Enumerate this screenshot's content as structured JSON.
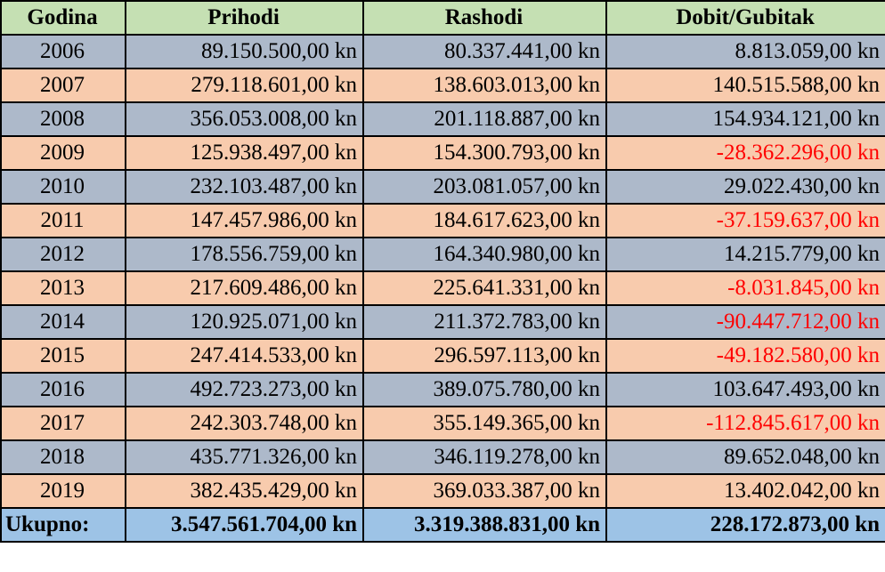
{
  "table": {
    "header": [
      "Godina",
      "Prihodi",
      "Rashodi",
      "Dobit/Gubitak"
    ],
    "rows": [
      [
        "2006",
        "89.150.500,00 kn",
        "80.337.441,00 kn",
        "8.813.059,00 kn"
      ],
      [
        "2007",
        "279.118.601,00 kn",
        "138.603.013,00 kn",
        "140.515.588,00 kn"
      ],
      [
        "2008",
        "356.053.008,00 kn",
        "201.118.887,00 kn",
        "154.934.121,00 kn"
      ],
      [
        "2009",
        "125.938.497,00 kn",
        "154.300.793,00 kn",
        "-28.362.296,00 kn"
      ],
      [
        "2010",
        "232.103.487,00 kn",
        "203.081.057,00 kn",
        "29.022.430,00 kn"
      ],
      [
        "2011",
        "147.457.986,00 kn",
        "184.617.623,00 kn",
        "-37.159.637,00 kn"
      ],
      [
        "2012",
        "178.556.759,00 kn",
        "164.340.980,00 kn",
        "14.215.779,00 kn"
      ],
      [
        "2013",
        "217.609.486,00 kn",
        "225.641.331,00 kn",
        "-8.031.845,00 kn"
      ],
      [
        "2014",
        "120.925.071,00 kn",
        "211.372.783,00 kn",
        "-90.447.712,00 kn"
      ],
      [
        "2015",
        "247.414.533,00 kn",
        "296.597.113,00 kn",
        "-49.182.580,00 kn"
      ],
      [
        "2016",
        "492.723.273,00 kn",
        "389.075.780,00 kn",
        "103.647.493,00 kn"
      ],
      [
        "2017",
        "242.303.748,00 kn",
        "355.149.365,00 kn",
        "-112.845.617,00 kn"
      ],
      [
        "2018",
        "435.771.326,00 kn",
        "346.119.278,00 kn",
        "89.652.048,00 kn"
      ],
      [
        "2019",
        "382.435.429,00 kn",
        "369.033.387,00 kn",
        "13.402.042,00 kn"
      ]
    ],
    "total": [
      "Ukupno:",
      "3.547.561.704,00 kn",
      "3.319.388.831,00 kn",
      "228.172.873,00 kn"
    ]
  }
}
